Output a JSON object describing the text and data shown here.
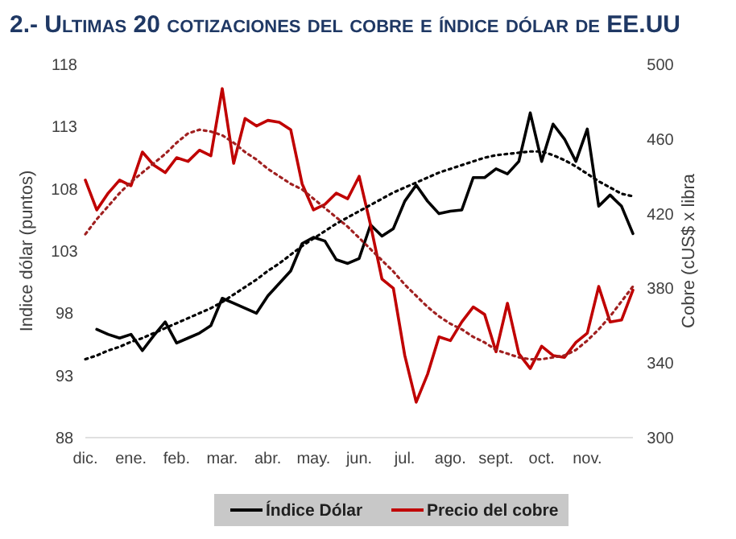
{
  "chart_data": {
    "type": "line",
    "title": "2.- Ultimas 20 cotizaciones del cobre e índice dólar de EE.UU",
    "ylabel": "Indice dólar (puntos)",
    "y2label": "Cobre (cUS$ x libra",
    "categories": [
      "dic.",
      null,
      null,
      null,
      "ene.",
      null,
      null,
      null,
      "feb.",
      null,
      null,
      null,
      "mar.",
      null,
      null,
      null,
      "abr.",
      null,
      null,
      null,
      "may.",
      null,
      null,
      null,
      "jun.",
      null,
      null,
      null,
      "jul.",
      null,
      null,
      null,
      "ago.",
      null,
      null,
      null,
      "sept.",
      null,
      null,
      null,
      "oct.",
      null,
      null,
      null,
      "nov.",
      null,
      null,
      null,
      null
    ],
    "ylim": [
      88,
      118
    ],
    "yticks": [
      88,
      93,
      98,
      103,
      108,
      113,
      118
    ],
    "y2lim": [
      300,
      500
    ],
    "y2ticks": [
      300,
      340,
      380,
      420,
      460,
      500
    ],
    "grid": false,
    "legend": "bottom",
    "series": [
      {
        "name": "Índice Dólar",
        "color": "#000000",
        "values": [
          null,
          96.7,
          96.3,
          96.0,
          96.3,
          95.0,
          96.2,
          97.3,
          95.6,
          96.0,
          96.4,
          97.0,
          99.2,
          98.8,
          98.4,
          98.0,
          99.4,
          100.4,
          101.4,
          103.6,
          104.1,
          103.8,
          102.3,
          102.0,
          102.4,
          105.1,
          104.2,
          104.8,
          107.0,
          108.3,
          107.0,
          106.0,
          106.2,
          106.3,
          108.9,
          108.9,
          109.6,
          109.2,
          110.2,
          114.1,
          110.2,
          113.2,
          112.0,
          110.2,
          112.8,
          106.6,
          107.5,
          106.6,
          104.4
        ]
      },
      {
        "name": "Precio del cobre",
        "color": "#c00000",
        "axis": "y2",
        "values": [
          438,
          422,
          431,
          438,
          435,
          453,
          446,
          442,
          450,
          448,
          454,
          451,
          487,
          447,
          471,
          467,
          470,
          469,
          465,
          436,
          422,
          425,
          431,
          428,
          440,
          414,
          385,
          380,
          344,
          319,
          334,
          354,
          352,
          362,
          370,
          366,
          346,
          372,
          345,
          337,
          349,
          344,
          343,
          351,
          356,
          381,
          362,
          363,
          379
        ]
      },
      {
        "color": "#000000",
        "line_style": "dotted",
        "values": [
          94.3,
          94.6,
          95.0,
          95.3,
          95.7,
          96.0,
          96.4,
          96.8,
          97.2,
          97.6,
          98.0,
          98.4,
          98.9,
          99.5,
          100.1,
          100.7,
          101.4,
          102.0,
          102.7,
          103.4,
          104.0,
          104.6,
          105.2,
          105.7,
          106.2,
          106.7,
          107.2,
          107.7,
          108.1,
          108.5,
          108.9,
          109.3,
          109.6,
          109.9,
          110.2,
          110.5,
          110.7,
          110.8,
          110.9,
          111.0,
          111.0,
          110.7,
          110.3,
          109.8,
          109.2,
          108.6,
          108.1,
          107.6,
          107.4
        ]
      },
      {
        "color": "#a02020",
        "line_style": "dotted",
        "axis": "y2",
        "values": [
          409,
          417,
          424,
          431,
          437,
          442,
          447,
          452,
          458,
          463,
          465,
          464,
          462,
          458,
          453,
          449,
          444,
          440,
          436,
          433,
          428,
          423,
          418,
          413,
          407,
          401,
          395,
          389,
          382,
          376,
          370,
          365,
          361,
          358,
          354,
          351,
          347,
          345,
          343,
          342,
          342,
          343,
          344,
          347,
          352,
          358,
          365,
          373,
          381
        ]
      }
    ]
  }
}
